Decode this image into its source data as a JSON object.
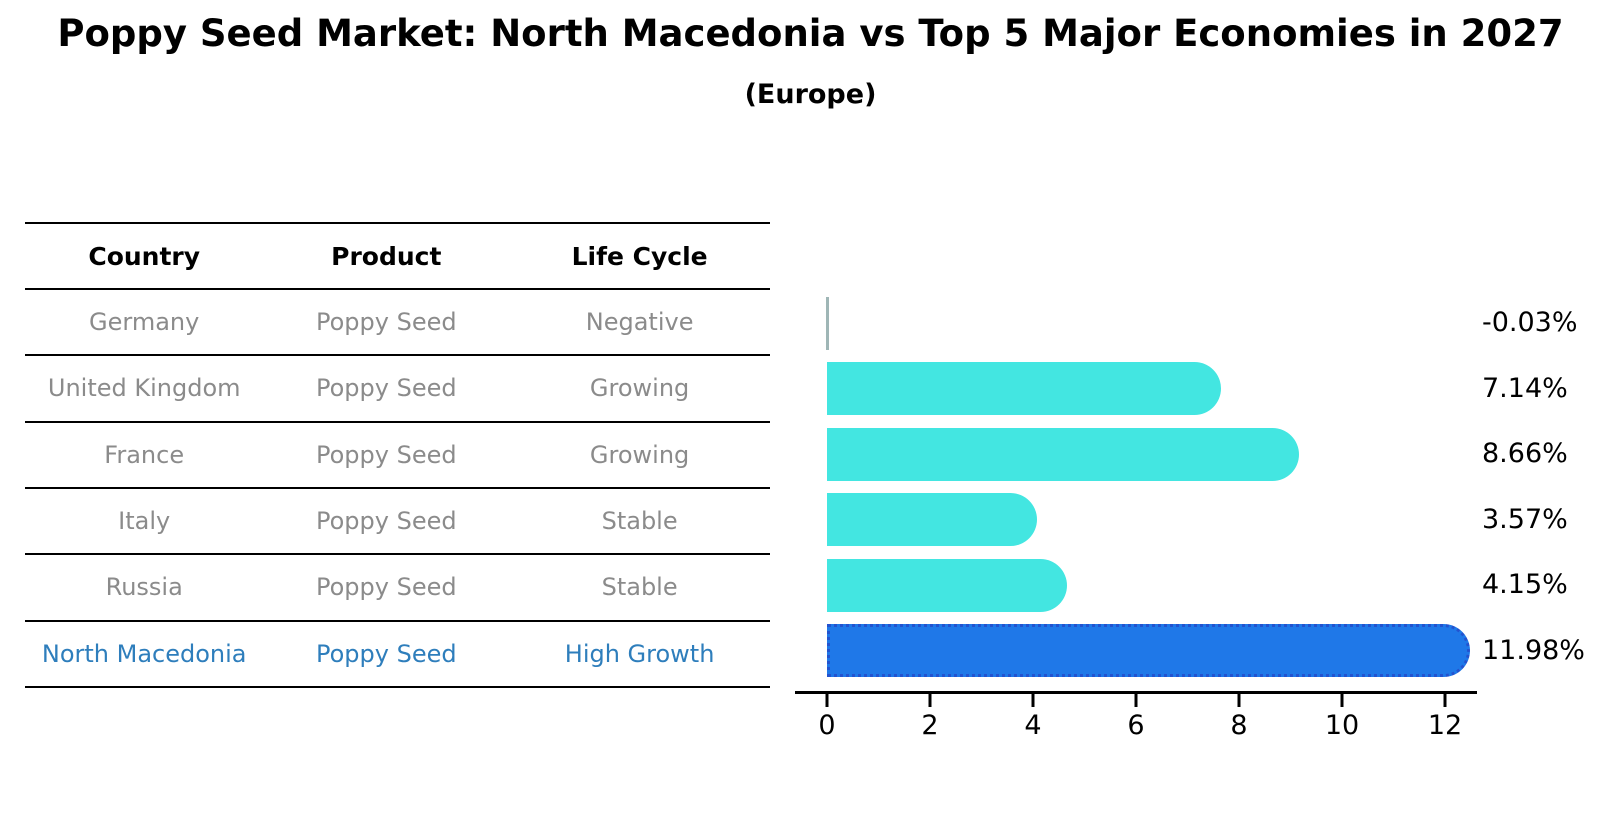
{
  "title": "Poppy Seed Market: North Macedonia vs Top 5 Major Economies in 2027",
  "subtitle": "(Europe)",
  "table": {
    "headers": [
      "Country",
      "Product",
      "Life Cycle"
    ],
    "rows": [
      {
        "country": "Germany",
        "product": "Poppy Seed",
        "life_cycle": "Negative",
        "highlight": false
      },
      {
        "country": "United Kingdom",
        "product": "Poppy Seed",
        "life_cycle": "Growing",
        "highlight": false
      },
      {
        "country": "France",
        "product": "Poppy Seed",
        "life_cycle": "Growing",
        "highlight": false
      },
      {
        "country": "Italy",
        "product": "Poppy Seed",
        "life_cycle": "Stable",
        "highlight": false
      },
      {
        "country": "Russia",
        "product": "Poppy Seed",
        "life_cycle": "Stable",
        "highlight": false
      },
      {
        "country": "North Macedonia",
        "product": "Poppy Seed",
        "life_cycle": "High Growth",
        "highlight": true
      }
    ]
  },
  "chart_data": {
    "type": "bar",
    "orientation": "horizontal",
    "title": "Poppy Seed Market: North Macedonia vs Top 5 Major Economies in 2027 (Europe)",
    "categories": [
      "Germany",
      "United Kingdom",
      "France",
      "Italy",
      "Russia",
      "North Macedonia"
    ],
    "values": [
      -0.03,
      7.14,
      8.66,
      3.57,
      4.15,
      11.98
    ],
    "value_labels": [
      "-0.03%",
      "7.14%",
      "8.66%",
      "3.57%",
      "4.15%",
      "11.98%"
    ],
    "x_ticks": [
      0,
      2,
      4,
      6,
      8,
      10,
      12
    ],
    "xlim": [
      -0.6,
      12.6
    ],
    "grid": false,
    "legend": false,
    "highlight_index": 5,
    "bar_color": "#43e6e1",
    "highlight_bar_color": "#1f78e8",
    "highlight_border_color": "#2353cf",
    "highlight_text_color": "#2e7ebc",
    "muted_text_color": "#8b8b8b",
    "axis_color": "#000000"
  }
}
